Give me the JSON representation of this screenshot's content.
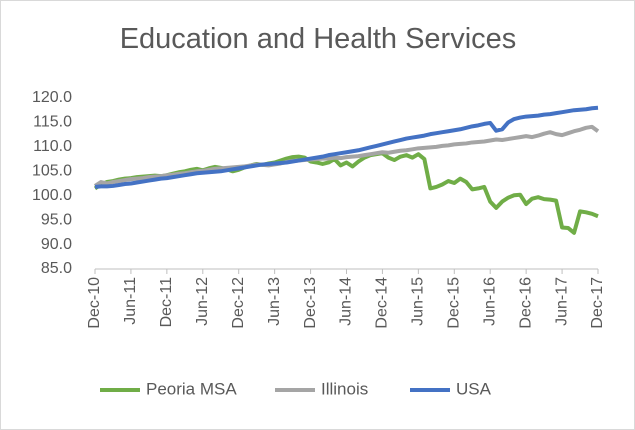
{
  "chart_data": {
    "type": "line",
    "title": "Education and Health Services",
    "categories": [
      "Dec-10",
      null,
      null,
      null,
      null,
      null,
      "Jun-11",
      null,
      null,
      null,
      null,
      null,
      "Dec-11",
      null,
      null,
      null,
      null,
      null,
      "Jun-12",
      null,
      null,
      null,
      null,
      null,
      "Dec-12",
      null,
      null,
      null,
      null,
      null,
      "Jun-13",
      null,
      null,
      null,
      null,
      null,
      "Dec-13",
      null,
      null,
      null,
      null,
      null,
      "Jun-14",
      null,
      null,
      null,
      null,
      null,
      "Dec-14",
      null,
      null,
      null,
      null,
      null,
      "Jun-15",
      null,
      null,
      null,
      null,
      null,
      "Dec-15",
      null,
      null,
      null,
      null,
      null,
      "Jun-16",
      null,
      null,
      null,
      null,
      null,
      "Dec-16",
      null,
      null,
      null,
      null,
      null,
      "Jun-17",
      null,
      null,
      null,
      null,
      null,
      "Dec-17"
    ],
    "series": [
      {
        "name": "Peoria MSA",
        "color": "#70ad47",
        "values": [
          101.5,
          102.3,
          102.8,
          103.0,
          103.3,
          103.5,
          103.6,
          103.8,
          103.9,
          104.0,
          104.1,
          104.0,
          104.2,
          104.5,
          104.8,
          105.0,
          105.3,
          105.5,
          105.2,
          105.6,
          105.9,
          105.7,
          105.4,
          105.0,
          105.3,
          105.8,
          106.2,
          106.5,
          106.3,
          106.6,
          106.8,
          107.2,
          107.6,
          107.9,
          108.0,
          107.8,
          107.0,
          106.8,
          106.5,
          106.8,
          107.5,
          106.2,
          106.8,
          106.0,
          107.0,
          107.8,
          108.3,
          108.5,
          108.7,
          107.8,
          107.3,
          108.0,
          108.3,
          107.8,
          108.5,
          107.5,
          101.5,
          101.8,
          102.3,
          103.0,
          102.6,
          103.5,
          102.8,
          101.3,
          101.5,
          101.8,
          98.8,
          97.5,
          98.8,
          99.6,
          100.1,
          100.2,
          98.3,
          99.4,
          99.7,
          99.3,
          99.2,
          99.0,
          93.5,
          93.4,
          92.4,
          96.8,
          96.6,
          96.3,
          95.8
        ]
      },
      {
        "name": "Illinois",
        "color": "#a5a5a5",
        "values": [
          102.0,
          102.8,
          102.5,
          102.8,
          103.0,
          103.2,
          103.4,
          103.5,
          103.6,
          103.8,
          103.9,
          104.0,
          104.2,
          104.3,
          104.5,
          104.6,
          104.8,
          105.0,
          105.1,
          105.3,
          105.5,
          105.6,
          105.7,
          105.8,
          105.9,
          106.0,
          106.2,
          106.4,
          106.3,
          106.2,
          106.4,
          106.6,
          106.9,
          107.1,
          107.2,
          107.3,
          107.4,
          107.5,
          107.6,
          107.6,
          107.8,
          107.7,
          107.9,
          108.0,
          108.1,
          108.3,
          108.5,
          108.7,
          108.9,
          108.8,
          109.0,
          109.2,
          109.3,
          109.5,
          109.7,
          109.8,
          109.9,
          110.0,
          110.2,
          110.3,
          110.5,
          110.6,
          110.7,
          110.9,
          111.0,
          111.1,
          111.3,
          111.5,
          111.4,
          111.6,
          111.8,
          112.0,
          112.2,
          112.0,
          112.3,
          112.7,
          113.0,
          112.6,
          112.4,
          112.8,
          113.2,
          113.5,
          113.9,
          114.1,
          113.2
        ]
      },
      {
        "name": "USA",
        "color": "#4472c4",
        "values": [
          101.8,
          101.9,
          101.9,
          102.0,
          102.2,
          102.4,
          102.5,
          102.7,
          102.9,
          103.1,
          103.3,
          103.5,
          103.6,
          103.8,
          104.0,
          104.2,
          104.4,
          104.6,
          104.7,
          104.8,
          104.9,
          105.0,
          105.2,
          105.4,
          105.6,
          105.8,
          106.0,
          106.2,
          106.4,
          106.5,
          106.6,
          106.7,
          106.8,
          107.0,
          107.2,
          107.4,
          107.6,
          107.8,
          108.0,
          108.3,
          108.5,
          108.7,
          108.9,
          109.1,
          109.3,
          109.6,
          109.9,
          110.2,
          110.5,
          110.8,
          111.1,
          111.4,
          111.7,
          111.9,
          112.1,
          112.3,
          112.6,
          112.8,
          113.0,
          113.2,
          113.4,
          113.6,
          113.9,
          114.2,
          114.4,
          114.7,
          114.9,
          113.3,
          113.6,
          115.0,
          115.7,
          116.0,
          116.2,
          116.3,
          116.4,
          116.6,
          116.7,
          116.9,
          117.1,
          117.3,
          117.5,
          117.6,
          117.7,
          117.9,
          118.0
        ]
      }
    ],
    "ylim": [
      85,
      120
    ],
    "yticks": [
      {
        "value": 85,
        "label": "85.0"
      },
      {
        "value": 90,
        "label": "90.0"
      },
      {
        "value": 95,
        "label": "95.0"
      },
      {
        "value": 100,
        "label": "100.0"
      },
      {
        "value": 105,
        "label": "105.0"
      },
      {
        "value": 110,
        "label": "110.0"
      },
      {
        "value": 115,
        "label": "115.0"
      },
      {
        "value": 120,
        "label": "120.0"
      }
    ],
    "grid": false,
    "legend": "bottom"
  }
}
